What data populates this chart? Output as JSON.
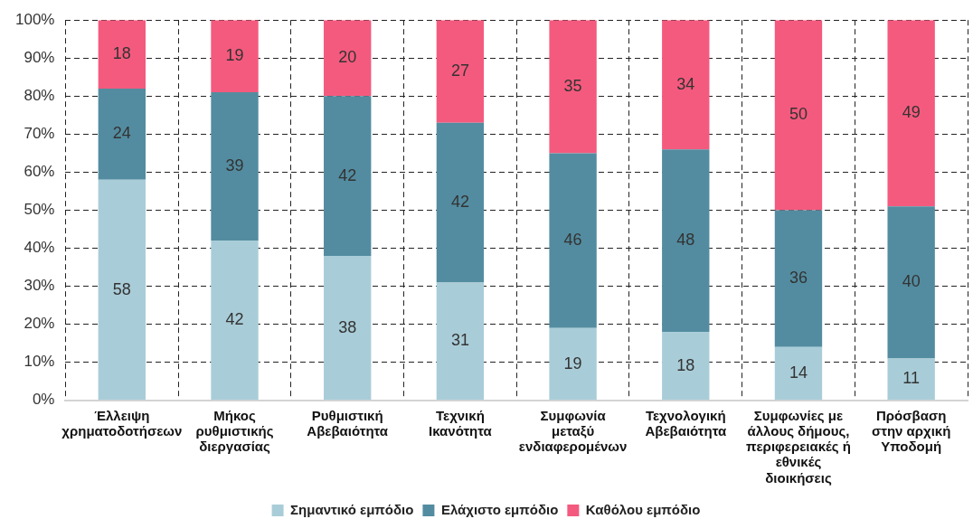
{
  "chart_data": {
    "type": "bar",
    "stacked": true,
    "categories": [
      "Έλλειψη\nχρηματοδοτήσεων",
      "Μήκος\nρυθμιστικής\nδιεργασίας",
      "Ρυθμιστική\nΑβεβαιότητα",
      "Τεχνική\nΙκανότητα",
      "Συμφωνία\nμεταξύ\nενδιαφερομένων",
      "Τεχνολογική\nΑβεβαιότητα",
      "Συμφωνίες με\nάλλους δήμους,\nπεριφερειακές ή\nεθνικές\nδιοικήσεις",
      "Πρόσβαση\nστην αρχική\nΥποδομή"
    ],
    "series": [
      {
        "name": "Σημαντικό εμπόδιο",
        "color": "#a9cdd8",
        "values": [
          58,
          42,
          38,
          31,
          19,
          18,
          14,
          11
        ]
      },
      {
        "name": "Ελάχιστο εμπόδιο",
        "color": "#538ca0",
        "values": [
          24,
          39,
          42,
          42,
          46,
          48,
          36,
          40
        ]
      },
      {
        "name": "Καθόλου εμπόδιο",
        "color": "#f45a7e",
        "values": [
          18,
          19,
          20,
          27,
          35,
          34,
          50,
          49
        ]
      }
    ],
    "ylim": [
      0,
      100
    ],
    "yticks": [
      {
        "value": 0,
        "label": "0%"
      },
      {
        "value": 10,
        "label": "10%"
      },
      {
        "value": 20,
        "label": "20%"
      },
      {
        "value": 30,
        "label": "30%"
      },
      {
        "value": 40,
        "label": "40%"
      },
      {
        "value": 50,
        "label": "50%"
      },
      {
        "value": 60,
        "label": "60%"
      },
      {
        "value": 70,
        "label": "70%"
      },
      {
        "value": 80,
        "label": "80%"
      },
      {
        "value": 90,
        "label": "90%"
      },
      {
        "value": 100,
        "label": "100%"
      }
    ],
    "grid": true,
    "legend": "bottom",
    "data_labels": true
  }
}
